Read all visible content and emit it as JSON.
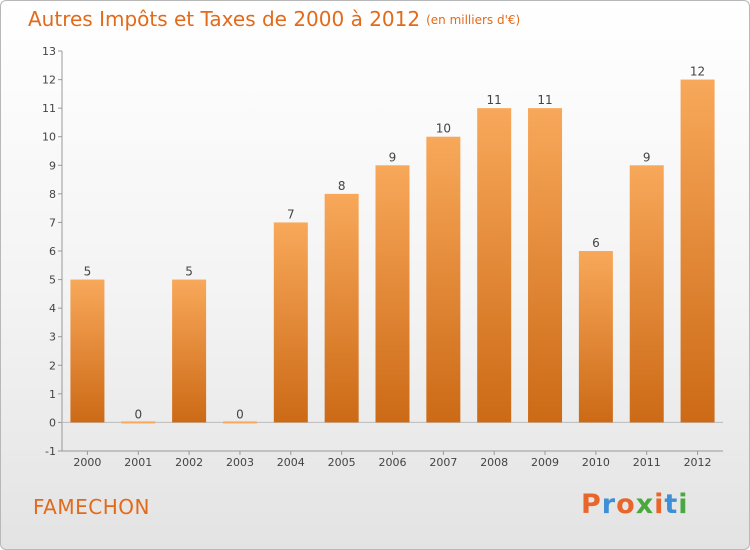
{
  "header": {
    "title": "Autres Impôts et Taxes de 2000 à 2012",
    "unit": "(en milliers d'€)"
  },
  "footer": {
    "place": "FAMECHON",
    "logo": "Proxiti"
  },
  "colors": {
    "bar_light": "#f8a85a",
    "bar_dark": "#cc6a16",
    "title": "#e26a1b",
    "logo_letters": [
      "#e8662a",
      "#3d8fd6",
      "#e8662a",
      "#4aa83f",
      "#e8662a",
      "#3d8fd6",
      "#4aa83f"
    ]
  },
  "chart_data": {
    "type": "bar",
    "categories": [
      "2000",
      "2001",
      "2002",
      "2003",
      "2004",
      "2005",
      "2006",
      "2007",
      "2008",
      "2009",
      "2010",
      "2011",
      "2012"
    ],
    "values": [
      5,
      0,
      5,
      0,
      7,
      8,
      9,
      10,
      11,
      11,
      6,
      9,
      12
    ],
    "ylim": [
      -1,
      13
    ],
    "yticks": [
      -1,
      0,
      1,
      2,
      3,
      4,
      5,
      6,
      7,
      8,
      9,
      10,
      11,
      12,
      13
    ],
    "grid": false,
    "data_labels": true
  }
}
